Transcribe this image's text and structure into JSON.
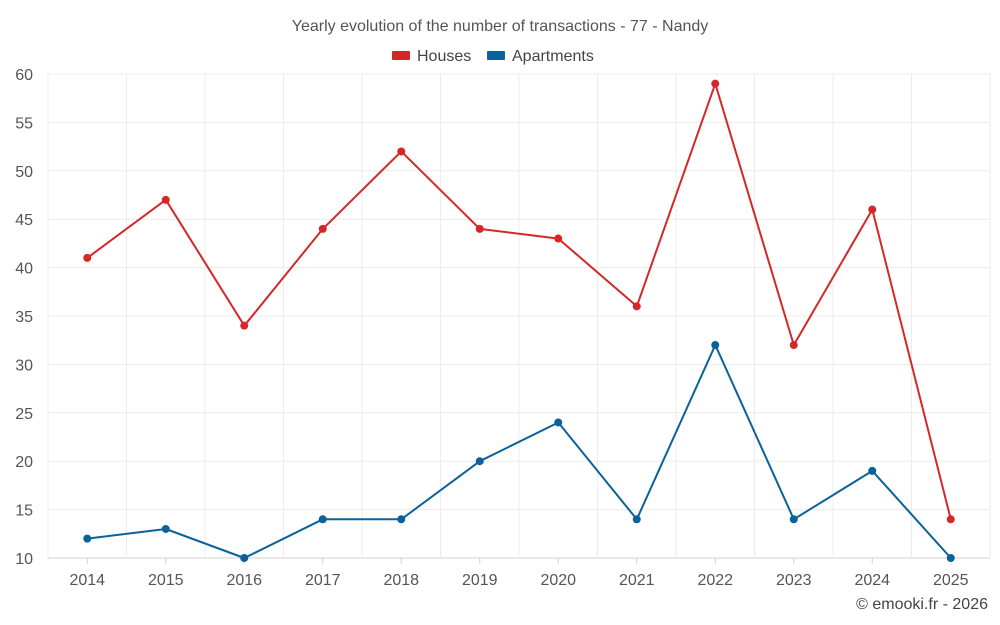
{
  "chart_data": {
    "type": "line",
    "title": "Yearly evolution of the number of transactions - 77 - Nandy",
    "categories": [
      "2014",
      "2015",
      "2016",
      "2017",
      "2018",
      "2019",
      "2020",
      "2021",
      "2022",
      "2023",
      "2024",
      "2025"
    ],
    "series": [
      {
        "name": "Houses",
        "color": "#d62728",
        "values": [
          41,
          47,
          34,
          44,
          52,
          44,
          43,
          36,
          59,
          32,
          46,
          14
        ]
      },
      {
        "name": "Apartments",
        "color": "#0b6199",
        "values": [
          12,
          13,
          10,
          14,
          14,
          20,
          24,
          14,
          32,
          14,
          19,
          10
        ]
      }
    ],
    "ylim": [
      10,
      60
    ],
    "yticks": [
      10,
      15,
      20,
      25,
      30,
      35,
      40,
      45,
      50,
      55,
      60
    ],
    "xlabel": "",
    "ylabel": "",
    "grid": true,
    "legend_position": "top-center"
  },
  "credit": "© emooki.fr - 2026"
}
